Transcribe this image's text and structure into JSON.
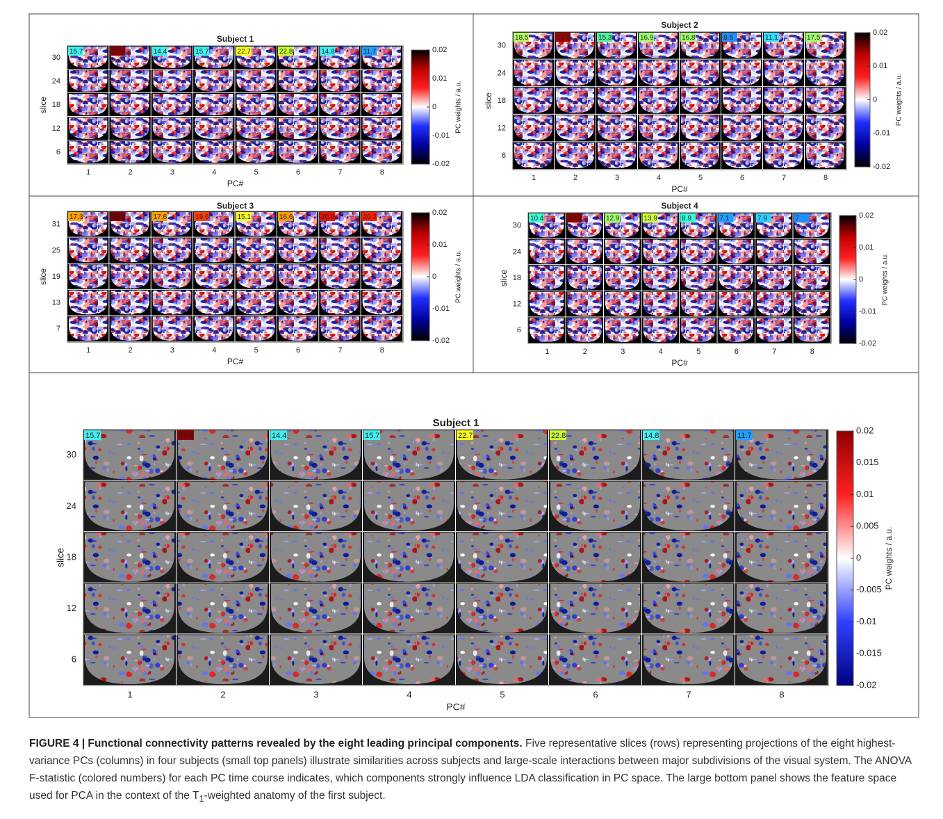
{
  "panels": [
    {
      "title": "Subject 1",
      "ylabel": "slice",
      "xlabel": "PC#",
      "cbar_label": "PC weights / a.u.",
      "slices": [
        30,
        24,
        18,
        12,
        6
      ],
      "pcs": [
        1,
        2,
        3,
        4,
        5,
        6,
        7,
        8
      ],
      "fstats": [
        {
          "text": "15.7",
          "color": "#40f0f0"
        },
        {
          "text": "37.8",
          "color": "#8b0000"
        },
        {
          "text": "14.4",
          "color": "#40f0f0"
        },
        {
          "text": "15.7",
          "color": "#40f0f0"
        },
        {
          "text": "22.7",
          "color": "#ffff20"
        },
        {
          "text": "22.8",
          "color": "#c8ff30"
        },
        {
          "text": "14.8",
          "color": "#40f0f0"
        },
        {
          "text": "11.7",
          "color": "#20a0ff"
        }
      ],
      "cbar_ticks": [
        0.02,
        0.01,
        0,
        -0.01,
        -0.02
      ]
    },
    {
      "title": "Subject 2",
      "ylabel": "slice",
      "xlabel": "PC#",
      "cbar_label": "PC weights / a.u.",
      "slices": [
        30,
        24,
        18,
        12,
        6
      ],
      "pcs": [
        1,
        2,
        3,
        4,
        5,
        6,
        7,
        8
      ],
      "fstats": [
        {
          "text": "18.5",
          "color": "#b4ff60"
        },
        {
          "text": "29.9",
          "color": "#a00000"
        },
        {
          "text": "15.3",
          "color": "#50f0a0"
        },
        {
          "text": "16.9",
          "color": "#a0ff70"
        },
        {
          "text": "16.8",
          "color": "#a0ff70"
        },
        {
          "text": "8.6",
          "color": "#1e90ff"
        },
        {
          "text": "11.1",
          "color": "#30e0ff"
        },
        {
          "text": "17.5",
          "color": "#a0ff70"
        }
      ],
      "cbar_ticks": [
        0.02,
        0.01,
        0,
        -0.01,
        -0.02
      ]
    },
    {
      "title": "Subject 3",
      "ylabel": "slice",
      "xlabel": "PC#",
      "cbar_label": "PC weights / a.u.",
      "slices": [
        31,
        25,
        19,
        13,
        7
      ],
      "pcs": [
        1,
        2,
        3,
        4,
        5,
        6,
        7,
        8
      ],
      "fstats": [
        {
          "text": "17.3",
          "color": "#ffa500"
        },
        {
          "text": "23.8",
          "color": "#7a0000"
        },
        {
          "text": "17.6",
          "color": "#ffa000"
        },
        {
          "text": "19.6",
          "color": "#ff4000"
        },
        {
          "text": "15.1",
          "color": "#ffff20"
        },
        {
          "text": "16.6",
          "color": "#ff9900"
        },
        {
          "text": "20.9",
          "color": "#ee1000"
        },
        {
          "text": "20.2",
          "color": "#ff2000"
        }
      ],
      "cbar_ticks": [
        0.02,
        0.01,
        0,
        -0.01,
        -0.02
      ]
    },
    {
      "title": "Subject 4",
      "ylabel": "slice",
      "xlabel": "PC#",
      "cbar_label": "PC weights / a.u.",
      "slices": [
        30,
        24,
        18,
        12,
        6
      ],
      "pcs": [
        1,
        2,
        3,
        4,
        5,
        6,
        7,
        8
      ],
      "fstats": [
        {
          "text": "10.4",
          "color": "#40ffd0"
        },
        {
          "text": "23.9",
          "color": "#8b0000"
        },
        {
          "text": "12.9",
          "color": "#a0ff70"
        },
        {
          "text": "13.9",
          "color": "#d0ff40"
        },
        {
          "text": "8.9",
          "color": "#30ffe0"
        },
        {
          "text": "7.1",
          "color": "#20a0ff"
        },
        {
          "text": "7.9",
          "color": "#30d0ff"
        },
        {
          "text": "7",
          "color": "#2090ff"
        }
      ],
      "cbar_ticks": [
        0.02,
        0.01,
        0,
        -0.01,
        -0.02
      ]
    },
    {
      "title": "Subject 1",
      "ylabel": "slice",
      "xlabel": "PC#",
      "cbar_label": "PC weights / a.u.",
      "slices": [
        30,
        24,
        18,
        12,
        6
      ],
      "pcs": [
        1,
        2,
        3,
        4,
        5,
        6,
        7,
        8
      ],
      "fstats": [
        {
          "text": "15.7",
          "color": "#40f0f0"
        },
        {
          "text": "37.8",
          "color": "#8b0000"
        },
        {
          "text": "14.4",
          "color": "#40f0f0"
        },
        {
          "text": "15.7",
          "color": "#40f0f0"
        },
        {
          "text": "22.7",
          "color": "#ffff20"
        },
        {
          "text": "22.8",
          "color": "#c8ff30"
        },
        {
          "text": "14.8",
          "color": "#40f0f0"
        },
        {
          "text": "11.7",
          "color": "#20a0ff"
        }
      ],
      "cbar_ticks": [
        0.02,
        0.015,
        0.01,
        0.005,
        0,
        -0.005,
        -0.01,
        -0.015,
        -0.02
      ]
    }
  ],
  "caption": {
    "label": "FIGURE 4 | Functional connectivity patterns revealed by the eight leading principal components.",
    "text": "Five representative slices (rows) representing projections of the eight highest-variance PCs (columns) in four subjects (small top panels) illustrate similarities across subjects and large-scale interactions between major subdivisions of the visual system. The ANOVA F-statistic (colored numbers) for each PC time course indicates, which components strongly influence LDA classification in PC space. The large bottom panel shows the feature space used for PCA in the context of the T",
    "subscript": "1",
    "text_end": "-weighted anatomy of the first subject."
  }
}
